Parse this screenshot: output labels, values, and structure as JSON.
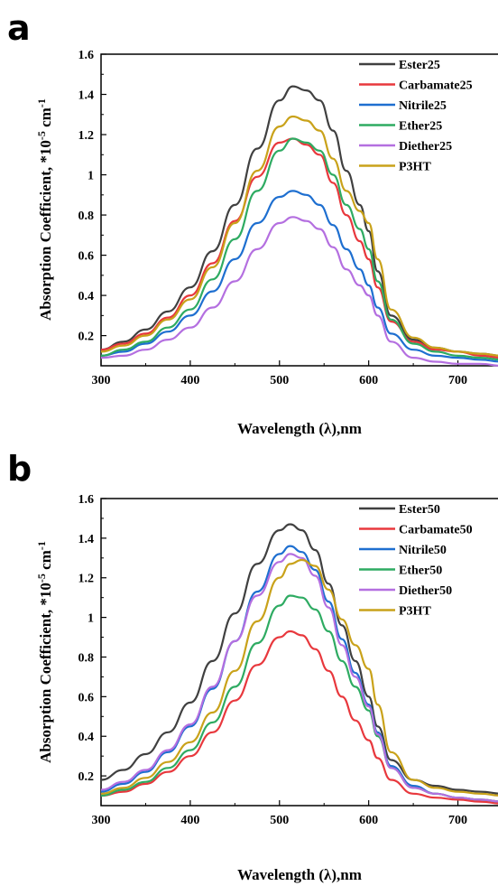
{
  "chart_data": [
    {
      "type": "line",
      "panel": "a",
      "xlabel": "Wavelength (λ),nm",
      "ylabel": "Absorption Coefficient, *10",
      "ylabel_sup1": "-5",
      "ylabel_mid": " cm",
      "ylabel_sup2": "-1",
      "xlim": [
        300,
        750
      ],
      "ylim": [
        0.05,
        1.6
      ],
      "xticks": [
        300,
        400,
        500,
        600,
        700
      ],
      "yticks": [
        0.2,
        0.4,
        0.6,
        0.8,
        1,
        1.2,
        1.4,
        1.6
      ],
      "legend_position": "top-right",
      "x": [
        300,
        325,
        350,
        375,
        400,
        425,
        450,
        475,
        500,
        515,
        530,
        545,
        560,
        575,
        590,
        600,
        610,
        625,
        650,
        675,
        700,
        725,
        750
      ],
      "series": [
        {
          "name": "Ester25",
          "color": "#404040",
          "values": [
            0.13,
            0.17,
            0.23,
            0.32,
            0.44,
            0.62,
            0.85,
            1.13,
            1.37,
            1.44,
            1.42,
            1.37,
            1.22,
            1.02,
            0.85,
            0.72,
            0.52,
            0.3,
            0.18,
            0.14,
            0.12,
            0.11,
            0.1
          ]
        },
        {
          "name": "Carbamate25",
          "color": "#e8383d",
          "values": [
            0.13,
            0.16,
            0.21,
            0.29,
            0.4,
            0.56,
            0.77,
            0.99,
            1.16,
            1.18,
            1.15,
            1.1,
            0.96,
            0.8,
            0.67,
            0.58,
            0.44,
            0.27,
            0.17,
            0.13,
            0.12,
            0.1,
            0.09
          ]
        },
        {
          "name": "Nitrile25",
          "color": "#1e6fd0",
          "values": [
            0.1,
            0.12,
            0.16,
            0.22,
            0.3,
            0.42,
            0.58,
            0.76,
            0.89,
            0.92,
            0.9,
            0.85,
            0.75,
            0.63,
            0.53,
            0.45,
            0.34,
            0.21,
            0.13,
            0.1,
            0.09,
            0.08,
            0.07
          ]
        },
        {
          "name": "Ether25",
          "color": "#2eab62",
          "values": [
            0.1,
            0.13,
            0.17,
            0.24,
            0.33,
            0.48,
            0.68,
            0.92,
            1.12,
            1.18,
            1.16,
            1.12,
            1.0,
            0.85,
            0.73,
            0.63,
            0.47,
            0.28,
            0.16,
            0.12,
            0.1,
            0.09,
            0.08
          ]
        },
        {
          "name": "Diether25",
          "color": "#b46fe0",
          "values": [
            0.09,
            0.1,
            0.13,
            0.18,
            0.24,
            0.34,
            0.47,
            0.63,
            0.76,
            0.79,
            0.77,
            0.73,
            0.64,
            0.53,
            0.45,
            0.4,
            0.3,
            0.17,
            0.09,
            0.07,
            0.06,
            0.06,
            0.05
          ]
        },
        {
          "name": "P3HT",
          "color": "#c9a21a",
          "values": [
            0.12,
            0.15,
            0.2,
            0.28,
            0.38,
            0.54,
            0.76,
            1.02,
            1.24,
            1.29,
            1.27,
            1.22,
            1.08,
            0.92,
            0.82,
            0.76,
            0.58,
            0.33,
            0.19,
            0.14,
            0.12,
            0.11,
            0.1
          ]
        }
      ]
    },
    {
      "type": "line",
      "panel": "b",
      "xlabel": "Wavelength (λ),nm",
      "ylabel": "Absorption Coefficient, *10",
      "ylabel_sup1": "-5",
      "ylabel_mid": " cm",
      "ylabel_sup2": "-1",
      "xlim": [
        300,
        750
      ],
      "ylim": [
        0.05,
        1.6
      ],
      "xticks": [
        300,
        400,
        500,
        600,
        700
      ],
      "yticks": [
        0.2,
        0.4,
        0.6,
        0.8,
        1,
        1.2,
        1.4,
        1.6
      ],
      "legend_position": "top-right",
      "x": [
        300,
        325,
        350,
        375,
        400,
        425,
        450,
        475,
        500,
        512,
        525,
        540,
        555,
        570,
        585,
        600,
        610,
        625,
        650,
        675,
        700,
        725,
        750
      ],
      "series": [
        {
          "name": "Ester50",
          "color": "#404040",
          "values": [
            0.18,
            0.23,
            0.31,
            0.42,
            0.57,
            0.78,
            1.02,
            1.27,
            1.44,
            1.47,
            1.44,
            1.34,
            1.17,
            0.96,
            0.78,
            0.6,
            0.45,
            0.28,
            0.18,
            0.15,
            0.13,
            0.12,
            0.11
          ]
        },
        {
          "name": "Carbamate50",
          "color": "#e8383d",
          "values": [
            0.1,
            0.12,
            0.16,
            0.22,
            0.3,
            0.42,
            0.58,
            0.76,
            0.9,
            0.93,
            0.91,
            0.84,
            0.73,
            0.6,
            0.48,
            0.38,
            0.29,
            0.18,
            0.11,
            0.09,
            0.08,
            0.07,
            0.06
          ]
        },
        {
          "name": "Nitrile50",
          "color": "#1e6fd0",
          "values": [
            0.12,
            0.16,
            0.22,
            0.32,
            0.45,
            0.64,
            0.88,
            1.13,
            1.32,
            1.36,
            1.33,
            1.24,
            1.08,
            0.89,
            0.72,
            0.56,
            0.42,
            0.25,
            0.15,
            0.11,
            0.09,
            0.08,
            0.07
          ]
        },
        {
          "name": "Ether50",
          "color": "#2eab62",
          "values": [
            0.1,
            0.13,
            0.17,
            0.24,
            0.33,
            0.47,
            0.65,
            0.87,
            1.06,
            1.11,
            1.1,
            1.04,
            0.93,
            0.78,
            0.65,
            0.53,
            0.4,
            0.24,
            0.14,
            0.11,
            0.09,
            0.08,
            0.07
          ]
        },
        {
          "name": "Diether50",
          "color": "#b46fe0",
          "values": [
            0.13,
            0.17,
            0.23,
            0.33,
            0.46,
            0.65,
            0.88,
            1.11,
            1.28,
            1.32,
            1.3,
            1.21,
            1.05,
            0.86,
            0.7,
            0.55,
            0.41,
            0.24,
            0.14,
            0.11,
            0.09,
            0.08,
            0.07
          ]
        },
        {
          "name": "P3HT",
          "color": "#c9a21a",
          "values": [
            0.11,
            0.14,
            0.19,
            0.27,
            0.37,
            0.52,
            0.73,
            0.98,
            1.2,
            1.27,
            1.29,
            1.26,
            1.14,
            0.99,
            0.86,
            0.74,
            0.56,
            0.32,
            0.18,
            0.14,
            0.12,
            0.11,
            0.1
          ]
        }
      ]
    }
  ]
}
